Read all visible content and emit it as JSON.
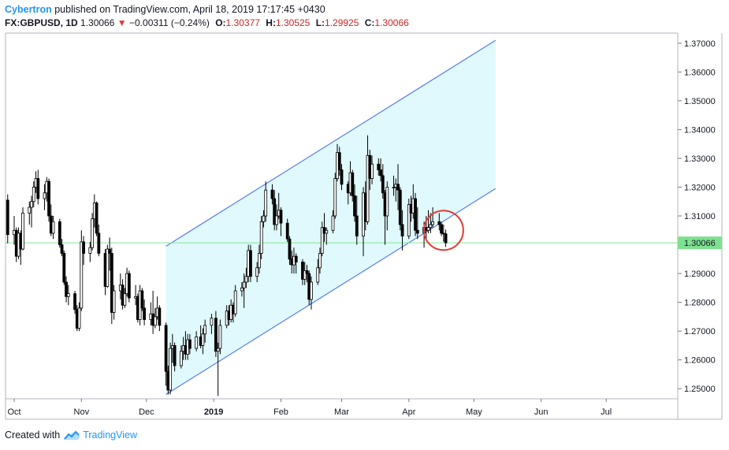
{
  "header": {
    "author": "Cybertron",
    "published_text": "published on TradingView.com, April 18, 2019 17:17:45 +0430",
    "symbol": "FX:GBPUSD, 1D",
    "last": "1.30066",
    "change_arrow": "▼",
    "change": "−0.00311 (−0.24%)",
    "open_label": "O:",
    "open": "1.30377",
    "high_label": "H:",
    "high": "1.30525",
    "low_label": "L:",
    "low": "1.29925",
    "close_label": "C:",
    "close": "1.30066"
  },
  "footer": {
    "created_with": "Created with",
    "brand": "TradingView",
    "logo_icon": "tradingview-cloud-icon"
  },
  "colors": {
    "candle": "#000000",
    "channel_line": "#5b7bf0",
    "channel_fill": "#e0f9fd",
    "price_line": "#86e59a",
    "price_label_bg": "#7ee08f",
    "circle": "#e53935",
    "brand": "#2196f3"
  },
  "chart_data": {
    "type": "candlestick",
    "symbol": "FX:GBPUSD",
    "interval": "1D",
    "y_ticks": [
      "1.25000",
      "1.26000",
      "1.27000",
      "1.28000",
      "1.29000",
      "1.30000",
      "1.31000",
      "1.32000",
      "1.33000",
      "1.34000",
      "1.35000",
      "1.36000",
      "1.37000"
    ],
    "ylim": [
      1.2465,
      1.3735
    ],
    "x_labels": [
      {
        "label": "Oct",
        "date": "2018-10-01"
      },
      {
        "label": "Nov",
        "date": "2018-11-01"
      },
      {
        "label": "Dec",
        "date": "2018-12-01"
      },
      {
        "label": "2019",
        "date": "2019-01-01"
      },
      {
        "label": "Feb",
        "date": "2019-02-01"
      },
      {
        "label": "Mar",
        "date": "2019-03-01"
      },
      {
        "label": "Apr",
        "date": "2019-04-01"
      },
      {
        "label": "May",
        "date": "2019-05-01"
      },
      {
        "label": "Jun",
        "date": "2019-06-01"
      },
      {
        "label": "Jul",
        "date": "2019-07-01"
      }
    ],
    "xlim": [
      "2018-09-27",
      "2019-08-03"
    ],
    "current_price": "1.30066",
    "channel": {
      "start": {
        "date": "2018-12-10",
        "low": 1.248,
        "high": 1.2995
      },
      "end": {
        "date": "2019-05-11",
        "low": 1.3195,
        "high": 1.371
      }
    },
    "circle_annotation": {
      "date": "2019-04-17",
      "price": 1.305
    },
    "candles": [
      {
        "d": "2018-09-28",
        "o": 1.3155,
        "h": 1.3175,
        "l": 1.3005,
        "c": 1.3035
      },
      {
        "d": "2018-10-01",
        "o": 1.3035,
        "h": 1.31,
        "l": 1.3,
        "c": 1.305
      },
      {
        "d": "2018-10-02",
        "o": 1.305,
        "h": 1.306,
        "l": 1.294,
        "c": 1.296
      },
      {
        "d": "2018-10-03",
        "o": 1.296,
        "h": 1.306,
        "l": 1.295,
        "c": 1.304
      },
      {
        "d": "2018-10-04",
        "o": 1.304,
        "h": 1.305,
        "l": 1.293,
        "c": 1.2985
      },
      {
        "d": "2018-10-05",
        "o": 1.2985,
        "h": 1.313,
        "l": 1.298,
        "c": 1.311
      },
      {
        "d": "2018-10-08",
        "o": 1.311,
        "h": 1.315,
        "l": 1.307,
        "c": 1.313
      },
      {
        "d": "2018-10-09",
        "o": 1.313,
        "h": 1.317,
        "l": 1.306,
        "c": 1.315
      },
      {
        "d": "2018-10-10",
        "o": 1.315,
        "h": 1.322,
        "l": 1.313,
        "c": 1.32
      },
      {
        "d": "2018-10-11",
        "o": 1.32,
        "h": 1.3255,
        "l": 1.318,
        "c": 1.323
      },
      {
        "d": "2018-10-12",
        "o": 1.323,
        "h": 1.326,
        "l": 1.314,
        "c": 1.316
      },
      {
        "d": "2018-10-15",
        "o": 1.316,
        "h": 1.321,
        "l": 1.312,
        "c": 1.318
      },
      {
        "d": "2018-10-16",
        "o": 1.318,
        "h": 1.3235,
        "l": 1.315,
        "c": 1.322
      },
      {
        "d": "2018-10-17",
        "o": 1.322,
        "h": 1.323,
        "l": 1.308,
        "c": 1.31
      },
      {
        "d": "2018-10-18",
        "o": 1.31,
        "h": 1.314,
        "l": 1.303,
        "c": 1.304
      },
      {
        "d": "2018-10-19",
        "o": 1.304,
        "h": 1.31,
        "l": 1.302,
        "c": 1.308
      },
      {
        "d": "2018-10-22",
        "o": 1.308,
        "h": 1.309,
        "l": 1.299,
        "c": 1.3
      },
      {
        "d": "2018-10-23",
        "o": 1.3,
        "h": 1.302,
        "l": 1.296,
        "c": 1.297
      },
      {
        "d": "2018-10-24",
        "o": 1.297,
        "h": 1.298,
        "l": 1.286,
        "c": 1.287
      },
      {
        "d": "2018-10-25",
        "o": 1.287,
        "h": 1.289,
        "l": 1.28,
        "c": 1.282
      },
      {
        "d": "2018-10-26",
        "o": 1.282,
        "h": 1.286,
        "l": 1.279,
        "c": 1.283
      },
      {
        "d": "2018-10-29",
        "o": 1.283,
        "h": 1.284,
        "l": 1.276,
        "c": 1.2775
      },
      {
        "d": "2018-10-30",
        "o": 1.2775,
        "h": 1.279,
        "l": 1.27,
        "c": 1.271
      },
      {
        "d": "2018-10-31",
        "o": 1.271,
        "h": 1.28,
        "l": 1.27,
        "c": 1.278
      },
      {
        "d": "2018-11-01",
        "o": 1.278,
        "h": 1.305,
        "l": 1.277,
        "c": 1.301
      },
      {
        "d": "2018-11-02",
        "o": 1.301,
        "h": 1.303,
        "l": 1.293,
        "c": 1.297
      },
      {
        "d": "2018-11-05",
        "o": 1.297,
        "h": 1.301,
        "l": 1.294,
        "c": 1.299
      },
      {
        "d": "2018-11-06",
        "o": 1.299,
        "h": 1.311,
        "l": 1.298,
        "c": 1.309
      },
      {
        "d": "2018-11-07",
        "o": 1.309,
        "h": 1.3175,
        "l": 1.306,
        "c": 1.3145
      },
      {
        "d": "2018-11-08",
        "o": 1.3145,
        "h": 1.315,
        "l": 1.303,
        "c": 1.304
      },
      {
        "d": "2018-11-09",
        "o": 1.304,
        "h": 1.307,
        "l": 1.296,
        "c": 1.297
      },
      {
        "d": "2018-11-12",
        "o": 1.297,
        "h": 1.2985,
        "l": 1.2825,
        "c": 1.2855
      },
      {
        "d": "2018-11-13",
        "o": 1.2855,
        "h": 1.3,
        "l": 1.285,
        "c": 1.2985
      },
      {
        "d": "2018-11-14",
        "o": 1.2985,
        "h": 1.3025,
        "l": 1.291,
        "c": 1.297
      },
      {
        "d": "2018-11-15",
        "o": 1.297,
        "h": 1.299,
        "l": 1.2725,
        "c": 1.2765
      },
      {
        "d": "2018-11-16",
        "o": 1.2765,
        "h": 1.286,
        "l": 1.274,
        "c": 1.284
      },
      {
        "d": "2018-11-19",
        "o": 1.284,
        "h": 1.29,
        "l": 1.281,
        "c": 1.286
      },
      {
        "d": "2018-11-20",
        "o": 1.286,
        "h": 1.288,
        "l": 1.2775,
        "c": 1.279
      },
      {
        "d": "2018-11-21",
        "o": 1.279,
        "h": 1.285,
        "l": 1.278,
        "c": 1.283
      },
      {
        "d": "2018-11-22",
        "o": 1.283,
        "h": 1.292,
        "l": 1.282,
        "c": 1.29
      },
      {
        "d": "2018-11-23",
        "o": 1.29,
        "h": 1.291,
        "l": 1.28,
        "c": 1.2815
      },
      {
        "d": "2018-11-26",
        "o": 1.2815,
        "h": 1.286,
        "l": 1.279,
        "c": 1.282
      },
      {
        "d": "2018-11-27",
        "o": 1.282,
        "h": 1.283,
        "l": 1.273,
        "c": 1.274
      },
      {
        "d": "2018-11-28",
        "o": 1.274,
        "h": 1.286,
        "l": 1.272,
        "c": 1.284
      },
      {
        "d": "2018-11-29",
        "o": 1.284,
        "h": 1.285,
        "l": 1.277,
        "c": 1.278
      },
      {
        "d": "2018-11-30",
        "o": 1.278,
        "h": 1.281,
        "l": 1.272,
        "c": 1.274
      },
      {
        "d": "2018-12-03",
        "o": 1.274,
        "h": 1.28,
        "l": 1.272,
        "c": 1.276
      },
      {
        "d": "2018-12-04",
        "o": 1.276,
        "h": 1.284,
        "l": 1.269,
        "c": 1.272
      },
      {
        "d": "2018-12-05",
        "o": 1.272,
        "h": 1.278,
        "l": 1.271,
        "c": 1.275
      },
      {
        "d": "2018-12-06",
        "o": 1.275,
        "h": 1.282,
        "l": 1.274,
        "c": 1.278
      },
      {
        "d": "2018-12-07",
        "o": 1.278,
        "h": 1.279,
        "l": 1.27,
        "c": 1.272
      },
      {
        "d": "2018-12-10",
        "o": 1.272,
        "h": 1.273,
        "l": 1.251,
        "c": 1.256
      },
      {
        "d": "2018-12-11",
        "o": 1.256,
        "h": 1.258,
        "l": 1.248,
        "c": 1.2495
      },
      {
        "d": "2018-12-12",
        "o": 1.2495,
        "h": 1.266,
        "l": 1.248,
        "c": 1.264
      },
      {
        "d": "2018-12-13",
        "o": 1.264,
        "h": 1.269,
        "l": 1.259,
        "c": 1.265
      },
      {
        "d": "2018-12-14",
        "o": 1.265,
        "h": 1.266,
        "l": 1.256,
        "c": 1.258
      },
      {
        "d": "2018-12-17",
        "o": 1.258,
        "h": 1.265,
        "l": 1.257,
        "c": 1.263
      },
      {
        "d": "2018-12-18",
        "o": 1.263,
        "h": 1.268,
        "l": 1.26,
        "c": 1.265
      },
      {
        "d": "2018-12-19",
        "o": 1.265,
        "h": 1.27,
        "l": 1.26,
        "c": 1.262
      },
      {
        "d": "2018-12-20",
        "o": 1.262,
        "h": 1.269,
        "l": 1.26,
        "c": 1.267
      },
      {
        "d": "2018-12-21",
        "o": 1.267,
        "h": 1.269,
        "l": 1.262,
        "c": 1.264
      },
      {
        "d": "2018-12-24",
        "o": 1.264,
        "h": 1.27,
        "l": 1.263,
        "c": 1.268
      },
      {
        "d": "2018-12-26",
        "o": 1.268,
        "h": 1.272,
        "l": 1.264,
        "c": 1.265
      },
      {
        "d": "2018-12-27",
        "o": 1.265,
        "h": 1.271,
        "l": 1.262,
        "c": 1.269
      },
      {
        "d": "2018-12-28",
        "o": 1.269,
        "h": 1.274,
        "l": 1.266,
        "c": 1.272
      },
      {
        "d": "2018-12-31",
        "o": 1.272,
        "h": 1.276,
        "l": 1.269,
        "c": 1.2745
      },
      {
        "d": "2019-01-02",
        "o": 1.2745,
        "h": 1.277,
        "l": 1.261,
        "c": 1.263
      },
      {
        "d": "2019-01-03",
        "o": 1.263,
        "h": 1.266,
        "l": 1.2475,
        "c": 1.264
      },
      {
        "d": "2019-01-04",
        "o": 1.264,
        "h": 1.274,
        "l": 1.262,
        "c": 1.272
      },
      {
        "d": "2019-01-07",
        "o": 1.272,
        "h": 1.279,
        "l": 1.271,
        "c": 1.277
      },
      {
        "d": "2019-01-08",
        "o": 1.277,
        "h": 1.279,
        "l": 1.272,
        "c": 1.274
      },
      {
        "d": "2019-01-09",
        "o": 1.274,
        "h": 1.281,
        "l": 1.273,
        "c": 1.279
      },
      {
        "d": "2019-01-10",
        "o": 1.279,
        "h": 1.28,
        "l": 1.273,
        "c": 1.276
      },
      {
        "d": "2019-01-11",
        "o": 1.276,
        "h": 1.286,
        "l": 1.275,
        "c": 1.284
      },
      {
        "d": "2019-01-14",
        "o": 1.284,
        "h": 1.287,
        "l": 1.282,
        "c": 1.285
      },
      {
        "d": "2019-01-15",
        "o": 1.285,
        "h": 1.29,
        "l": 1.278,
        "c": 1.287
      },
      {
        "d": "2019-01-16",
        "o": 1.287,
        "h": 1.292,
        "l": 1.285,
        "c": 1.289
      },
      {
        "d": "2019-01-17",
        "o": 1.289,
        "h": 1.3,
        "l": 1.287,
        "c": 1.298
      },
      {
        "d": "2019-01-18",
        "o": 1.298,
        "h": 1.3,
        "l": 1.287,
        "c": 1.289
      },
      {
        "d": "2019-01-21",
        "o": 1.289,
        "h": 1.294,
        "l": 1.287,
        "c": 1.292
      },
      {
        "d": "2019-01-22",
        "o": 1.292,
        "h": 1.3,
        "l": 1.29,
        "c": 1.297
      },
      {
        "d": "2019-01-23",
        "o": 1.297,
        "h": 1.31,
        "l": 1.295,
        "c": 1.308
      },
      {
        "d": "2019-01-24",
        "o": 1.308,
        "h": 1.312,
        "l": 1.306,
        "c": 1.31
      },
      {
        "d": "2019-01-25",
        "o": 1.31,
        "h": 1.322,
        "l": 1.308,
        "c": 1.319
      },
      {
        "d": "2019-01-28",
        "o": 1.319,
        "h": 1.321,
        "l": 1.314,
        "c": 1.316
      },
      {
        "d": "2019-01-29",
        "o": 1.316,
        "h": 1.319,
        "l": 1.305,
        "c": 1.307
      },
      {
        "d": "2019-01-30",
        "o": 1.307,
        "h": 1.314,
        "l": 1.305,
        "c": 1.31
      },
      {
        "d": "2019-01-31",
        "o": 1.31,
        "h": 1.318,
        "l": 1.309,
        "c": 1.312
      },
      {
        "d": "2019-02-01",
        "o": 1.312,
        "h": 1.313,
        "l": 1.303,
        "c": 1.3075
      },
      {
        "d": "2019-02-04",
        "o": 1.3075,
        "h": 1.309,
        "l": 1.301,
        "c": 1.302
      },
      {
        "d": "2019-02-05",
        "o": 1.302,
        "h": 1.303,
        "l": 1.293,
        "c": 1.295
      },
      {
        "d": "2019-02-06",
        "o": 1.295,
        "h": 1.298,
        "l": 1.29,
        "c": 1.293
      },
      {
        "d": "2019-02-07",
        "o": 1.293,
        "h": 1.299,
        "l": 1.29,
        "c": 1.296
      },
      {
        "d": "2019-02-08",
        "o": 1.296,
        "h": 1.297,
        "l": 1.29,
        "c": 1.294
      },
      {
        "d": "2019-02-11",
        "o": 1.294,
        "h": 1.295,
        "l": 1.286,
        "c": 1.288
      },
      {
        "d": "2019-02-12",
        "o": 1.288,
        "h": 1.294,
        "l": 1.286,
        "c": 1.291
      },
      {
        "d": "2019-02-13",
        "o": 1.291,
        "h": 1.293,
        "l": 1.287,
        "c": 1.29
      },
      {
        "d": "2019-02-14",
        "o": 1.29,
        "h": 1.291,
        "l": 1.279,
        "c": 1.281
      },
      {
        "d": "2019-02-15",
        "o": 1.281,
        "h": 1.289,
        "l": 1.2775,
        "c": 1.287
      },
      {
        "d": "2019-02-18",
        "o": 1.287,
        "h": 1.295,
        "l": 1.286,
        "c": 1.292
      },
      {
        "d": "2019-02-19",
        "o": 1.292,
        "h": 1.299,
        "l": 1.29,
        "c": 1.297
      },
      {
        "d": "2019-02-20",
        "o": 1.297,
        "h": 1.308,
        "l": 1.296,
        "c": 1.306
      },
      {
        "d": "2019-02-21",
        "o": 1.306,
        "h": 1.311,
        "l": 1.301,
        "c": 1.304
      },
      {
        "d": "2019-02-22",
        "o": 1.304,
        "h": 1.306,
        "l": 1.3,
        "c": 1.305
      },
      {
        "d": "2019-02-25",
        "o": 1.305,
        "h": 1.312,
        "l": 1.304,
        "c": 1.31
      },
      {
        "d": "2019-02-26",
        "o": 1.31,
        "h": 1.325,
        "l": 1.309,
        "c": 1.323
      },
      {
        "d": "2019-02-27",
        "o": 1.323,
        "h": 1.335,
        "l": 1.322,
        "c": 1.332
      },
      {
        "d": "2019-02-28",
        "o": 1.332,
        "h": 1.334,
        "l": 1.324,
        "c": 1.326
      },
      {
        "d": "2019-03-01",
        "o": 1.326,
        "h": 1.328,
        "l": 1.319,
        "c": 1.321
      },
      {
        "d": "2019-03-04",
        "o": 1.321,
        "h": 1.322,
        "l": 1.314,
        "c": 1.318
      },
      {
        "d": "2019-03-05",
        "o": 1.318,
        "h": 1.329,
        "l": 1.317,
        "c": 1.325
      },
      {
        "d": "2019-03-06",
        "o": 1.325,
        "h": 1.326,
        "l": 1.315,
        "c": 1.317
      },
      {
        "d": "2019-03-07",
        "o": 1.317,
        "h": 1.321,
        "l": 1.308,
        "c": 1.31
      },
      {
        "d": "2019-03-08",
        "o": 1.31,
        "h": 1.317,
        "l": 1.3,
        "c": 1.303
      },
      {
        "d": "2019-03-11",
        "o": 1.303,
        "h": 1.32,
        "l": 1.296,
        "c": 1.318
      },
      {
        "d": "2019-03-12",
        "o": 1.318,
        "h": 1.322,
        "l": 1.305,
        "c": 1.308
      },
      {
        "d": "2019-03-13",
        "o": 1.308,
        "h": 1.338,
        "l": 1.307,
        "c": 1.331
      },
      {
        "d": "2019-03-14",
        "o": 1.331,
        "h": 1.333,
        "l": 1.319,
        "c": 1.323
      },
      {
        "d": "2019-03-15",
        "o": 1.323,
        "h": 1.331,
        "l": 1.321,
        "c": 1.328
      },
      {
        "d": "2019-03-18",
        "o": 1.328,
        "h": 1.33,
        "l": 1.324,
        "c": 1.326
      },
      {
        "d": "2019-03-19",
        "o": 1.326,
        "h": 1.33,
        "l": 1.322,
        "c": 1.324
      },
      {
        "d": "2019-03-20",
        "o": 1.324,
        "h": 1.328,
        "l": 1.316,
        "c": 1.318
      },
      {
        "d": "2019-03-21",
        "o": 1.318,
        "h": 1.319,
        "l": 1.3,
        "c": 1.31
      },
      {
        "d": "2019-03-22",
        "o": 1.31,
        "h": 1.322,
        "l": 1.305,
        "c": 1.32
      },
      {
        "d": "2019-03-25",
        "o": 1.32,
        "h": 1.324,
        "l": 1.317,
        "c": 1.32
      },
      {
        "d": "2019-03-26",
        "o": 1.32,
        "h": 1.323,
        "l": 1.315,
        "c": 1.321
      },
      {
        "d": "2019-03-27",
        "o": 1.321,
        "h": 1.328,
        "l": 1.312,
        "c": 1.319
      },
      {
        "d": "2019-03-28",
        "o": 1.319,
        "h": 1.32,
        "l": 1.305,
        "c": 1.307
      },
      {
        "d": "2019-03-29",
        "o": 1.307,
        "h": 1.312,
        "l": 1.298,
        "c": 1.303
      },
      {
        "d": "2019-04-01",
        "o": 1.303,
        "h": 1.316,
        "l": 1.302,
        "c": 1.314
      },
      {
        "d": "2019-04-02",
        "o": 1.314,
        "h": 1.317,
        "l": 1.308,
        "c": 1.311
      },
      {
        "d": "2019-04-03",
        "o": 1.311,
        "h": 1.321,
        "l": 1.309,
        "c": 1.316
      },
      {
        "d": "2019-04-04",
        "o": 1.316,
        "h": 1.318,
        "l": 1.303,
        "c": 1.305
      },
      {
        "d": "2019-04-05",
        "o": 1.305,
        "h": 1.313,
        "l": 1.302,
        "c": 1.304
      },
      {
        "d": "2019-04-08",
        "o": 1.304,
        "h": 1.308,
        "l": 1.299,
        "c": 1.306
      },
      {
        "d": "2019-04-09",
        "o": 1.306,
        "h": 1.31,
        "l": 1.302,
        "c": 1.305
      },
      {
        "d": "2019-04-10",
        "o": 1.305,
        "h": 1.312,
        "l": 1.304,
        "c": 1.306
      },
      {
        "d": "2019-04-11",
        "o": 1.306,
        "h": 1.311,
        "l": 1.304,
        "c": 1.307
      },
      {
        "d": "2019-04-12",
        "o": 1.307,
        "h": 1.313,
        "l": 1.306,
        "c": 1.308
      },
      {
        "d": "2019-04-15",
        "o": 1.308,
        "h": 1.311,
        "l": 1.305,
        "c": 1.307
      },
      {
        "d": "2019-04-16",
        "o": 1.307,
        "h": 1.308,
        "l": 1.303,
        "c": 1.304
      },
      {
        "d": "2019-04-17",
        "o": 1.304,
        "h": 1.307,
        "l": 1.301,
        "c": 1.3038
      },
      {
        "d": "2019-04-18",
        "o": 1.30377,
        "h": 1.30525,
        "l": 1.29925,
        "c": 1.30066
      }
    ]
  }
}
